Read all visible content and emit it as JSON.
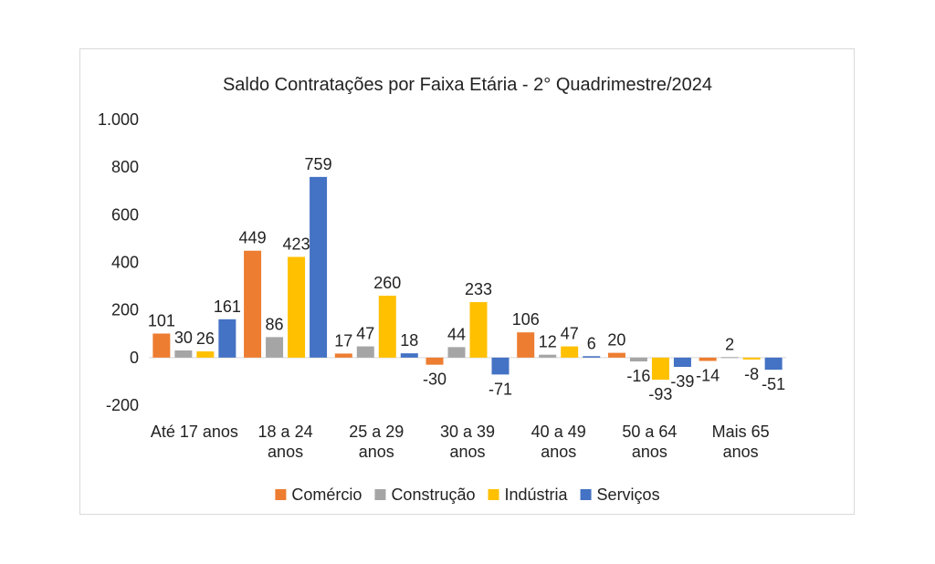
{
  "chart_data": {
    "type": "bar",
    "title": "Saldo Contratações por Faixa Etária - 2° Quadrimestre/2024",
    "categories": [
      [
        "Até 17 anos"
      ],
      [
        "18 a 24",
        "anos"
      ],
      [
        "25 a 29",
        "anos"
      ],
      [
        "30 a 39",
        "anos"
      ],
      [
        "40 a 49",
        "anos"
      ],
      [
        "50 a 64",
        "anos"
      ],
      [
        "Mais 65",
        "anos"
      ]
    ],
    "series": [
      {
        "name": "Comércio",
        "color": "#ED7D31",
        "values": [
          101,
          449,
          17,
          -30,
          106,
          20,
          -14
        ]
      },
      {
        "name": "Construção",
        "color": "#A5A5A5",
        "values": [
          30,
          86,
          47,
          44,
          12,
          -16,
          2
        ]
      },
      {
        "name": "Indústria",
        "color": "#FFC000",
        "values": [
          26,
          423,
          260,
          233,
          47,
          -93,
          -8
        ]
      },
      {
        "name": "Serviços",
        "color": "#4472C4",
        "values": [
          161,
          759,
          18,
          -71,
          6,
          -39,
          -51
        ]
      }
    ],
    "ylim": [
      -200,
      1000
    ],
    "yticks": [
      -200,
      0,
      200,
      400,
      600,
      800,
      1000
    ],
    "ytick_labels": [
      "-200",
      "0",
      "200",
      "400",
      "600",
      "800",
      "1.000"
    ],
    "grid": false,
    "legend_position": "bottom"
  }
}
